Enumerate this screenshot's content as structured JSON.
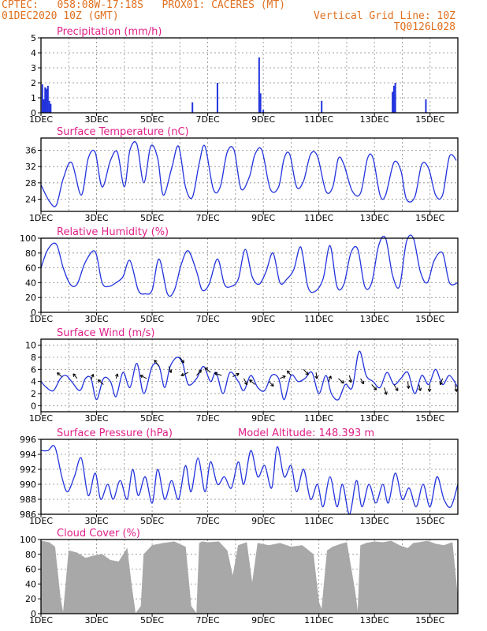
{
  "header": {
    "line1_left": "CPTEC:   058:08W-17:18S   PROX01: CACERES (MT)",
    "line2_left": "01DEC2020 10Z (GMT)",
    "grid_note": "Vertical Grid Line: 10Z",
    "code": "TQ0126L028",
    "model_altitude": "Model Altitude: 148.393 m"
  },
  "colors": {
    "header": "#e07020",
    "title": "#e0208a",
    "series": "#2233dd",
    "cloud": "#a8a8a8",
    "arrow": "#000000"
  },
  "x_axis": {
    "start_day": 1,
    "end_day": 16,
    "tick_labels": [
      "1DEC",
      "3DEC",
      "5DEC",
      "7DEC",
      "9DEC",
      "11DEC",
      "13DEC",
      "15DEC"
    ],
    "tick_days": [
      1,
      3,
      5,
      7,
      9,
      11,
      13,
      15
    ]
  },
  "chart_data": [
    {
      "id": "precip",
      "type": "bar",
      "title": "Precipitation (mm/h)",
      "ylim": [
        0,
        5
      ],
      "yticks": [
        0,
        1,
        2,
        3,
        4,
        5
      ],
      "x": [
        1.05,
        1.1,
        1.15,
        1.2,
        1.25,
        1.3,
        1.35,
        6.45,
        7.35,
        8.85,
        8.9,
        9.0,
        11.1,
        13.65,
        13.7,
        13.75,
        14.85
      ],
      "values": [
        1.9,
        0.9,
        1.7,
        1.6,
        1.8,
        0.8,
        0.6,
        0.7,
        2.0,
        3.7,
        1.3,
        0.2,
        0.8,
        1.4,
        1.8,
        2.0,
        0.9
      ]
    },
    {
      "id": "temp",
      "type": "line",
      "title": "Surface Temperature (nC)",
      "ylim": [
        21,
        39
      ],
      "yticks": [
        24,
        28,
        32,
        36
      ],
      "x": [
        1.0,
        1.3,
        1.55,
        1.8,
        2.1,
        2.45,
        2.7,
        2.95,
        3.2,
        3.5,
        3.75,
        4.0,
        4.2,
        4.45,
        4.7,
        4.95,
        5.2,
        5.4,
        5.7,
        5.95,
        6.2,
        6.45,
        6.7,
        6.9,
        7.2,
        7.45,
        7.7,
        7.95,
        8.2,
        8.5,
        8.7,
        8.95,
        9.25,
        9.55,
        9.75,
        9.95,
        10.2,
        10.45,
        10.7,
        10.95,
        11.25,
        11.5,
        11.7,
        11.9,
        12.2,
        12.5,
        12.75,
        12.95,
        13.2,
        13.4,
        13.7,
        13.95,
        14.15,
        14.45,
        14.7,
        14.95,
        15.2,
        15.45,
        15.7,
        15.95
      ],
      "values": [
        27.5,
        23.5,
        22.5,
        29,
        33,
        25,
        34,
        35.5,
        27,
        33.5,
        35.5,
        27,
        36,
        37.5,
        28,
        37,
        34,
        25,
        31.5,
        37,
        27,
        24.5,
        33,
        37,
        26.5,
        27,
        35.5,
        36,
        26.5,
        29.5,
        35,
        36,
        26.5,
        27,
        34,
        35,
        27,
        28.5,
        35,
        34.5,
        26,
        27,
        34,
        32.5,
        26,
        25.5,
        34,
        34,
        25,
        25,
        33,
        31,
        24,
        24.5,
        32.5,
        31.5,
        25,
        25,
        34.5,
        33.5
      ]
    },
    {
      "id": "rh",
      "type": "line",
      "title": "Relative Humidity (%)",
      "ylim": [
        0,
        100
      ],
      "yticks": [
        0,
        20,
        40,
        60,
        80,
        100
      ],
      "x": [
        1.0,
        1.25,
        1.55,
        1.8,
        2.05,
        2.3,
        2.6,
        2.95,
        3.2,
        3.45,
        3.7,
        3.95,
        4.2,
        4.5,
        4.75,
        5.0,
        5.25,
        5.55,
        5.8,
        6.05,
        6.3,
        6.6,
        6.8,
        7.05,
        7.35,
        7.6,
        7.85,
        8.1,
        8.35,
        8.6,
        8.85,
        9.1,
        9.35,
        9.6,
        9.85,
        10.1,
        10.35,
        10.6,
        10.85,
        11.15,
        11.4,
        11.65,
        11.9,
        12.15,
        12.4,
        12.65,
        12.9,
        13.15,
        13.4,
        13.65,
        13.9,
        14.15,
        14.4,
        14.65,
        14.9,
        15.15,
        15.45,
        15.7,
        16.0
      ],
      "values": [
        60,
        85,
        92,
        60,
        38,
        38,
        68,
        82,
        40,
        35,
        40,
        48,
        70,
        30,
        25,
        30,
        72,
        25,
        30,
        65,
        83,
        55,
        30,
        38,
        72,
        38,
        35,
        45,
        85,
        48,
        38,
        55,
        80,
        40,
        45,
        58,
        88,
        35,
        28,
        45,
        90,
        35,
        38,
        80,
        85,
        35,
        40,
        90,
        100,
        50,
        35,
        95,
        100,
        55,
        40,
        70,
        80,
        40,
        40
      ]
    },
    {
      "id": "wind",
      "type": "line",
      "title": "Surface Wind (m/s)",
      "ylim": [
        -1,
        11
      ],
      "yticks": [
        0,
        2,
        4,
        6,
        8,
        10
      ],
      "x": [
        1.0,
        1.2,
        1.45,
        1.7,
        1.9,
        2.1,
        2.4,
        2.6,
        2.8,
        3.0,
        3.25,
        3.5,
        3.7,
        3.95,
        4.2,
        4.45,
        4.7,
        5.0,
        5.25,
        5.45,
        5.65,
        5.9,
        6.1,
        6.3,
        6.6,
        6.85,
        7.1,
        7.3,
        7.55,
        7.8,
        8.1,
        8.3,
        8.55,
        8.8,
        9.05,
        9.3,
        9.55,
        9.75,
        10.0,
        10.25,
        10.5,
        10.75,
        11.0,
        11.25,
        11.45,
        11.7,
        11.95,
        12.2,
        12.45,
        12.7,
        12.95,
        13.2,
        13.45,
        13.7,
        13.95,
        14.2,
        14.45,
        14.7,
        14.95,
        15.2,
        15.45,
        15.7,
        16.0
      ],
      "values": [
        4,
        3,
        2.5,
        4.5,
        5,
        4,
        2.5,
        4.5,
        4.5,
        1,
        4.5,
        4,
        1.5,
        5.5,
        3,
        7,
        2,
        6.5,
        6.5,
        3,
        6.5,
        8,
        7,
        3.5,
        4.5,
        6.5,
        4,
        5.5,
        2,
        5.5,
        4,
        2.5,
        5,
        3,
        2.5,
        5,
        4.5,
        1,
        5,
        4,
        4.5,
        5.5,
        2,
        5,
        2,
        1,
        3.5,
        3,
        9,
        5,
        4,
        3,
        5.5,
        3.5,
        4.5,
        5.5,
        2,
        5,
        3.5,
        6,
        3.5,
        5,
        3
      ]
    },
    {
      "id": "wind_arrows",
      "type": "scatter",
      "title": "",
      "x": [
        1.75,
        2.3,
        2.8,
        3.25,
        3.7,
        4.8,
        5.25,
        5.6,
        6.0,
        6.3,
        6.6,
        7.1,
        7.5,
        7.9,
        8.3,
        8.7,
        9.2,
        9.6,
        10.0,
        10.45,
        10.9,
        11.35,
        11.7,
        12.1,
        12.5,
        12.9,
        13.35,
        13.7,
        14.2,
        14.6,
        15.0,
        15.45,
        15.9
      ],
      "y": [
        4.8,
        4.5,
        4.3,
        3.5,
        4.5,
        4.5,
        6.5,
        6.5,
        8,
        5.5,
        5,
        5.5,
        5,
        4.8,
        4.5,
        3.5,
        4,
        4.5,
        5,
        6,
        5.5,
        4,
        4.5,
        5,
        4.5,
        3.5,
        3,
        3.5,
        4,
        3.5,
        3.5,
        4.5,
        3.5
      ],
      "u": [
        -0.6,
        -0.5,
        0.3,
        -0.7,
        0.2,
        -0.8,
        -0.6,
        0.3,
        0.5,
        -0.9,
        0.6,
        -0.7,
        -0.9,
        0.8,
        0.4,
        -0.7,
        0.6,
        0.7,
        -0.5,
        0.6,
        0.1,
        0.3,
        0.7,
        0.2,
        0.4,
        0.6,
        0.3,
        0.5,
        0.1,
        0.2,
        -0.1,
        -0.3,
        0.2
      ],
      "v": [
        0.5,
        0.6,
        0.7,
        0.6,
        0.6,
        0.4,
        0.8,
        -0.8,
        -0.7,
        -0.4,
        0.7,
        0.6,
        0.3,
        0.4,
        -0.8,
        0.6,
        -0.6,
        0.3,
        0.6,
        -0.7,
        -0.8,
        0.7,
        -0.6,
        -0.9,
        -0.7,
        -0.7,
        -0.9,
        -0.8,
        -0.9,
        -0.8,
        -0.9,
        -0.8,
        -0.9
      ]
    },
    {
      "id": "pressure",
      "type": "line",
      "title": "Surface Pressure (hPa)",
      "ylim": [
        986,
        996
      ],
      "yticks": [
        986,
        988,
        990,
        992,
        994,
        996
      ],
      "x": [
        1.0,
        1.25,
        1.5,
        1.75,
        1.95,
        2.2,
        2.45,
        2.7,
        2.95,
        3.15,
        3.4,
        3.6,
        3.85,
        4.1,
        4.3,
        4.5,
        4.75,
        5.0,
        5.2,
        5.45,
        5.7,
        5.95,
        6.2,
        6.4,
        6.65,
        6.9,
        7.1,
        7.35,
        7.6,
        7.85,
        8.1,
        8.3,
        8.55,
        8.8,
        9.05,
        9.3,
        9.5,
        9.75,
        10.0,
        10.2,
        10.45,
        10.7,
        10.95,
        11.15,
        11.4,
        11.65,
        11.85,
        12.1,
        12.35,
        12.55,
        12.8,
        13.05,
        13.3,
        13.5,
        13.75,
        14.0,
        14.25,
        14.5,
        14.75,
        15.0,
        15.25,
        15.5,
        15.75,
        16.0
      ],
      "values": [
        994.5,
        994.5,
        995,
        991,
        989,
        991,
        993.5,
        988.5,
        991.5,
        988,
        990,
        988,
        990.5,
        988,
        992,
        988.5,
        991,
        987.5,
        992,
        988,
        990.5,
        988,
        992.5,
        989,
        993.5,
        989,
        993,
        990,
        991,
        989.5,
        993,
        990,
        994.5,
        991,
        992.5,
        989.5,
        995,
        991,
        992.5,
        989,
        992,
        988,
        990,
        987,
        991,
        987,
        990,
        986,
        990.5,
        987,
        990,
        987.5,
        990,
        987.5,
        991.5,
        988,
        989.5,
        987,
        990,
        987,
        991,
        988,
        987,
        990
      ]
    },
    {
      "id": "cloud",
      "type": "area",
      "title": "Cloud Cover (%)",
      "ylim": [
        0,
        100
      ],
      "yticks": [
        0,
        20,
        40,
        60,
        80,
        100
      ],
      "x": [
        1.0,
        1.3,
        1.5,
        1.7,
        1.8,
        2.0,
        2.3,
        2.6,
        2.9,
        3.2,
        3.5,
        3.8,
        4.1,
        4.25,
        4.4,
        4.6,
        4.7,
        5.0,
        5.4,
        5.8,
        6.2,
        6.4,
        6.6,
        6.7,
        6.8,
        7.0,
        7.4,
        7.7,
        7.9,
        8.1,
        8.4,
        8.6,
        8.8,
        9.2,
        9.6,
        10.0,
        10.4,
        10.8,
        11.0,
        11.1,
        11.3,
        11.5,
        11.8,
        12.0,
        12.3,
        12.4,
        12.5,
        12.7,
        13.0,
        13.3,
        13.6,
        13.9,
        14.2,
        14.4,
        14.6,
        14.9,
        15.2,
        15.5,
        15.8,
        16.0
      ],
      "values": [
        98,
        96,
        90,
        20,
        0,
        85,
        82,
        75,
        78,
        80,
        72,
        70,
        88,
        40,
        0,
        10,
        80,
        92,
        95,
        97,
        90,
        10,
        0,
        95,
        97,
        96,
        97,
        85,
        50,
        92,
        96,
        40,
        95,
        92,
        95,
        90,
        92,
        80,
        15,
        5,
        85,
        90,
        94,
        96,
        30,
        0,
        92,
        95,
        97,
        96,
        98,
        92,
        88,
        95,
        96,
        98,
        94,
        92,
        96,
        20
      ]
    }
  ]
}
